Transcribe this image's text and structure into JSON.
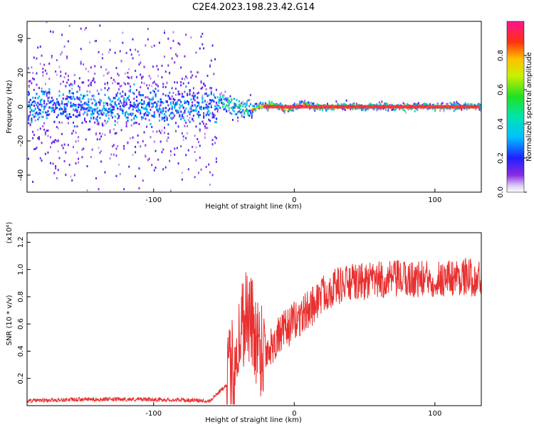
{
  "title": "C2E4.2023.198.23.42.G14",
  "chart_data": [
    {
      "type": "heatmap",
      "xlabel": "Height of straight line (km)",
      "ylabel": "Frequency (Hz)",
      "xlim": [
        -190,
        133
      ],
      "ylim": [
        -50,
        50
      ],
      "x_ticks": [
        "-100",
        "0",
        "100"
      ],
      "y_ticks": [
        "-40",
        "-20",
        "0",
        "20",
        "40"
      ],
      "colorbar": {
        "label": "Normalized spectral amplitude",
        "range": [
          0,
          1
        ],
        "ticks": [
          "0.0",
          "0.2",
          "0.4",
          "0.6",
          "0.8"
        ]
      },
      "regions": [
        {
          "x_range": [
            -190,
            -55
          ],
          "spread_hz": 50,
          "core_halfwidth_hz": 8,
          "core_amplitude": 0.35
        },
        {
          "x_range": [
            -55,
            -30
          ],
          "spread_hz": 8,
          "core_halfwidth_hz": 4,
          "core_amplitude": 0.5
        },
        {
          "x_range": [
            -30,
            133
          ],
          "spread_hz": 3,
          "core_halfwidth_hz": 1.5,
          "core_amplitude": 0.95
        }
      ],
      "grid": false
    },
    {
      "type": "line",
      "xlabel": "Height of straight line (km)",
      "ylabel": "SNR (10 * v/v)",
      "y_multiplier": "(x10⁴)",
      "xlim": [
        -190,
        133
      ],
      "ylim": [
        0,
        1.27
      ],
      "x_ticks": [
        "-100",
        "0",
        "100"
      ],
      "y_ticks": [
        "0.2",
        "0.4",
        "0.6",
        "0.8",
        "1.0",
        "1.2"
      ],
      "color": "#e83030",
      "x": [
        -190,
        -150,
        -100,
        -60,
        -48,
        -42,
        -38,
        -35,
        -30,
        -25,
        -20,
        -10,
        0,
        10,
        20,
        30,
        40,
        60,
        80,
        100,
        120,
        133
      ],
      "y": [
        0.03,
        0.04,
        0.04,
        0.03,
        0.15,
        0.35,
        0.55,
        0.7,
        0.6,
        0.45,
        0.4,
        0.52,
        0.62,
        0.7,
        0.82,
        0.88,
        0.9,
        0.92,
        0.93,
        0.93,
        0.95,
        0.93
      ],
      "grid": false
    }
  ]
}
